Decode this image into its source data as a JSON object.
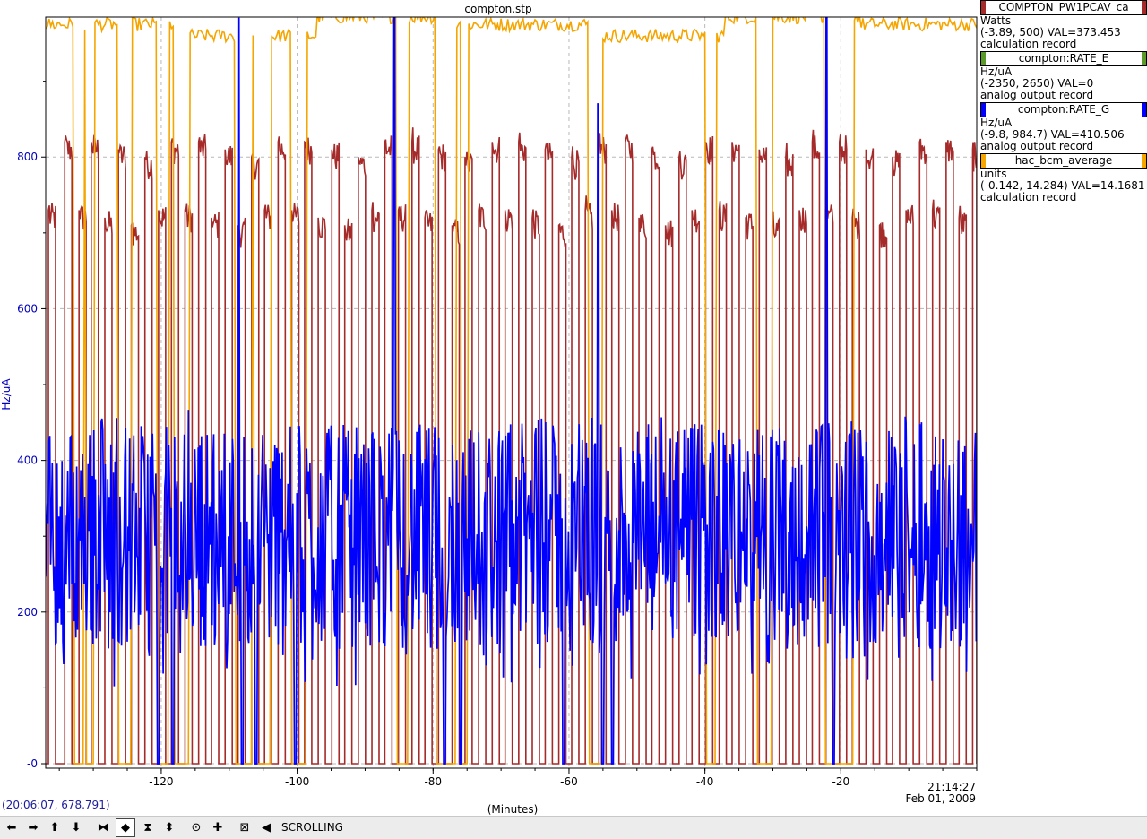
{
  "chart_data": {
    "type": "line",
    "title": "compton.stp",
    "xlabel": "(Minutes)",
    "ylabel": "Hz/uA",
    "xlim": [
      -137,
      0
    ],
    "ylim": [
      0,
      984.7
    ],
    "x_ticks": [
      -120,
      -100,
      -80,
      -60,
      -40,
      -20
    ],
    "y_ticks": [
      0,
      200,
      400,
      600,
      800
    ],
    "y_tick_labels": [
      "-0",
      "200",
      "400",
      "600",
      "800"
    ],
    "end_time": "21:14:27",
    "end_date": "Feb 01, 2009",
    "grid": true,
    "legend_position": "right",
    "series": [
      {
        "name": "COMPTON_PW1PCAV_ca",
        "units": "Watts",
        "range": "(-3.89, 500) VAL=373.453",
        "record_type": "calculation record",
        "color": "#a52a2a",
        "pulse_starts": [
          -136.6,
          -134.2,
          -132.1,
          -130.3,
          -128.3,
          -126.3,
          -124.4,
          -122.4,
          -120.4,
          -118.5,
          -116.5,
          -114.5,
          -112.6,
          -110.6,
          -108.7,
          -106.7,
          -104.8,
          -102.8,
          -100.8,
          -98.9,
          -96.9,
          -94.9,
          -93.0,
          -91.0,
          -89.0,
          -87.1,
          -85.1,
          -83.1,
          -81.2,
          -79.2,
          -77.2,
          -75.3,
          -73.3,
          -71.3,
          -69.4,
          -67.4,
          -65.4,
          -63.5,
          -61.5,
          -59.6,
          -57.6,
          -55.6,
          -53.7,
          -51.7,
          -49.7,
          -47.8,
          -45.8,
          -43.8,
          -41.9,
          -39.9,
          -37.9,
          -36.0,
          -34.0,
          -32.0,
          -30.1,
          -28.1,
          -26.1,
          -24.2,
          -22.2,
          -20.2,
          -18.3,
          -16.3,
          -14.3,
          -12.4,
          -10.4,
          -8.4,
          -6.5,
          -4.5,
          -2.6,
          -0.6
        ],
        "pulse_width": 1.05,
        "high_level_values": [
          730,
          820,
          730,
          820,
          720,
          810,
          710,
          800
        ]
      },
      {
        "name": "compton:RATE_E",
        "units": "Hz/uA",
        "range": "(-2350, 2650) VAL=0",
        "record_type": "analog output record",
        "color": "#5a9a2a",
        "constant_value": 0
      },
      {
        "name": "compton:RATE_G",
        "units": "Hz/uA",
        "range": "(-9.8, 984.7) VAL=410.506",
        "record_type": "analog output record",
        "color": "#0000ff",
        "typical_range": [
          100,
          430
        ],
        "spike_values": [
          {
            "x": -108.6,
            "y": 984
          },
          {
            "x": -85.7,
            "y": 984
          },
          {
            "x": -55.7,
            "y": 870
          },
          {
            "x": -22.1,
            "y": 984
          }
        ],
        "dropouts_to_zero": [
          -120.6,
          -118.4,
          -108.3,
          -106.2,
          -100.5,
          -78.5,
          -76.1,
          -61.0,
          -55.2,
          -53.8,
          -21.3
        ]
      },
      {
        "name": "hac_bcm_average",
        "units": "units",
        "range": "(-0.142, 14.284) VAL=14.1681",
        "record_type": "calculation record",
        "color": "#f5a500",
        "high_level_values": [
          975,
          960,
          985
        ],
        "dips": [
          [
            -132.8,
            -131.4
          ],
          [
            -131.0,
            -129.8
          ],
          [
            -126.4,
            -124.3
          ],
          [
            -120.6,
            -118.8
          ],
          [
            -118.2,
            -116.0
          ],
          [
            -109.2,
            -106.7
          ],
          [
            -106.4,
            -104.0
          ],
          [
            -100.8,
            -98.6
          ],
          [
            -85.4,
            -83.6
          ],
          [
            -79.5,
            -76.6
          ],
          [
            -75.9,
            -74.8
          ],
          [
            -57.1,
            -55.1
          ],
          [
            -39.8,
            -38.4
          ],
          [
            -32.3,
            -30.2
          ],
          [
            -22.4,
            -20.0
          ],
          [
            -19.8,
            -18.2
          ]
        ]
      }
    ]
  },
  "status_coordinate": "(20:06:07, 678.791)",
  "toolbar": {
    "buttons": [
      "arrow-left-icon",
      "arrow-right-icon",
      "arrow-up-icon",
      "arrow-down-icon",
      "zoom-in-x-icon",
      "zoom-out-x-icon",
      "zoom-in-y-icon",
      "zoom-out-y-icon",
      "autoscale-icon",
      "add-icon",
      "timescale-icon",
      "back-icon"
    ],
    "mode_label": "SCROLLING"
  }
}
